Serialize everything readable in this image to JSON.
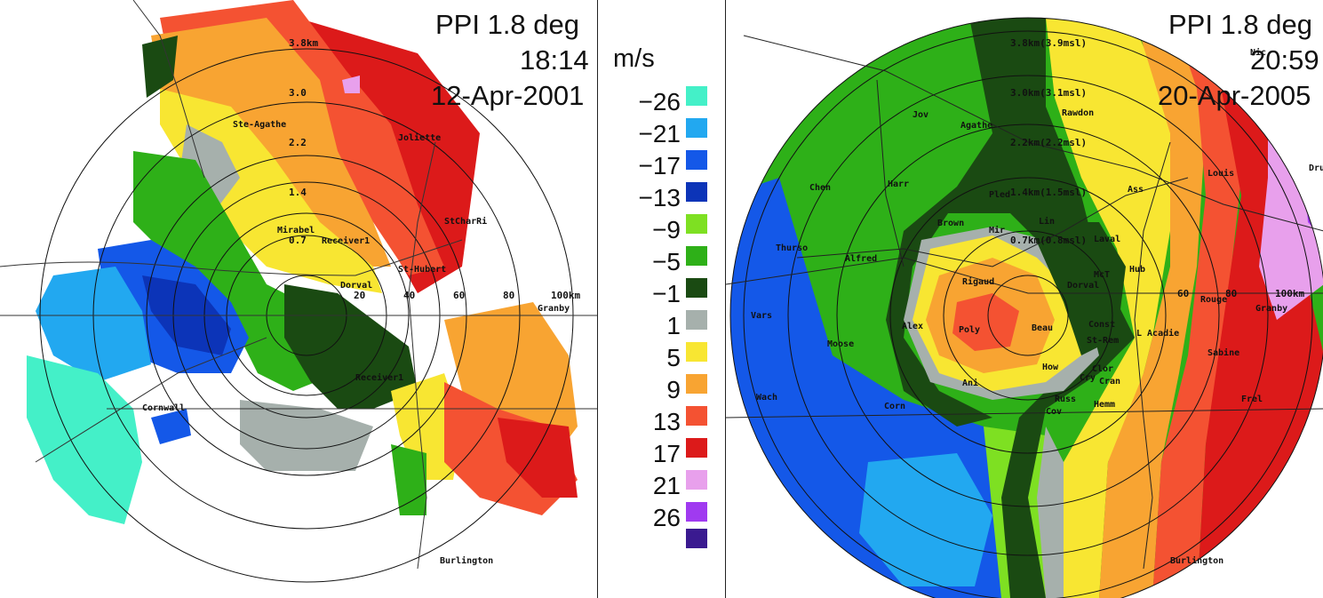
{
  "left_panel": {
    "title": "PPI 1.8 deg",
    "time": "18:14",
    "date": "12-Apr-2001",
    "ring_labels": [
      "3.8km",
      "3.0",
      "2.2",
      "1.4",
      "0.7"
    ],
    "range_labels": [
      "20",
      "40",
      "60",
      "80",
      "100km"
    ],
    "places": [
      "Ste-Agathe",
      "Joliette",
      "StCharRi",
      "Mirabel",
      "Receiver1",
      "St-Hubert",
      "Dorval",
      "Granby",
      "Cornwall",
      "Receiver1",
      "Burlington"
    ]
  },
  "right_panel": {
    "title": "PPI 1.8 deg",
    "time": "20:59",
    "date": "20-Apr-2005",
    "ring_labels": [
      "3.8km(3.9msl)",
      "3.0km(3.1msl)",
      "2.2km(2.2msl)",
      "1.4km(1.5msl)",
      "0.7km(0.8msl)"
    ],
    "range_labels": [
      "60",
      "80",
      "100km"
    ],
    "places": [
      "Nic",
      "Jov",
      "Agathe",
      "Rawdon",
      "Louis",
      "Dru",
      "Chen",
      "Harr",
      "Pled",
      "Ass",
      "Lin",
      "Brown",
      "Mir",
      "Laval",
      "Thurso",
      "Alfred",
      "Hub",
      "Rigaud",
      "Dorval",
      "McT",
      "Rouge",
      "Granby",
      "Vars",
      "Moose",
      "Alex",
      "Poly",
      "Beau",
      "Const",
      "L Acadie",
      "St-Rem",
      "Sabine",
      "How",
      "Clor",
      "Cran",
      "Ani",
      "Cry",
      "Frel",
      "Wach",
      "Corn",
      "Russ",
      "Hemm",
      "Cov",
      "Burlington"
    ]
  },
  "legend": {
    "unit": "m/s",
    "entries": [
      {
        "label": "−26",
        "color": "#44f0c8"
      },
      {
        "label": "−21",
        "color": "#22a8f0"
      },
      {
        "label": "−17",
        "color": "#1458e8"
      },
      {
        "label": "−13",
        "color": "#0c34b8"
      },
      {
        "label": "−9",
        "color": "#7ee022"
      },
      {
        "label": "−5",
        "color": "#2eb018"
      },
      {
        "label": "−1",
        "color": "#1a4a12"
      },
      {
        "label": "1",
        "color": "#a6b0ac"
      },
      {
        "label": "5",
        "color": "#f8e632"
      },
      {
        "label": "9",
        "color": "#f8a432"
      },
      {
        "label": "13",
        "color": "#f45232"
      },
      {
        "label": "17",
        "color": "#dc1a1a"
      },
      {
        "label": "21",
        "color": "#e8a0ec"
      },
      {
        "label": "26",
        "color": "#a03af0"
      },
      {
        "label": "",
        "color": "#3a1a90"
      }
    ]
  }
}
